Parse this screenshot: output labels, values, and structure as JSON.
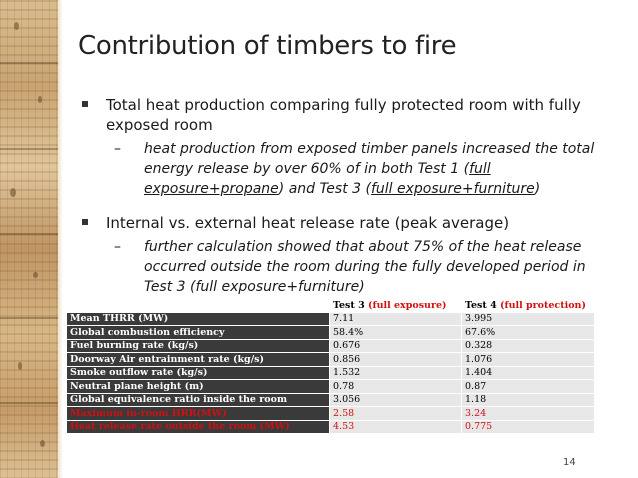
{
  "slide": {
    "title": "Contribution of timbers to fire",
    "page_number": "14"
  },
  "bullets": [
    {
      "text": "Total heat production comparing fully protected room with fully exposed room",
      "sub": {
        "part1": "heat production from exposed timber panels increased the total energy release by over 60% of in both Test 1 (",
        "u1": "full exposure+propane",
        "part2": ") and Test 3 (",
        "u2": "full exposure+furniture",
        "part3": ")"
      }
    },
    {
      "text": "Internal vs. external heat release rate (peak average)",
      "sub": {
        "text": "further calculation showed that about 75% of the heat release occurred outside the room during the fully developed period in Test 3 (full exposure+furniture)"
      }
    }
  ],
  "table": {
    "headers": [
      {
        "main": "Test 3",
        "note": "(full exposure)"
      },
      {
        "main": "Test 4",
        "note": "(full protection)"
      }
    ],
    "rows": [
      {
        "label": "Mean THRR (MW)",
        "t3": "7.11",
        "t4": "3.995",
        "highlight": false
      },
      {
        "label": "Global combustion efficiency",
        "t3": "58.4%",
        "t4": "67.6%",
        "highlight": false
      },
      {
        "label": "Fuel burning rate (kg/s)",
        "t3": "0.676",
        "t4": "0.328",
        "highlight": false
      },
      {
        "label": "Doorway Air entrainment rate  (kg/s)",
        "t3": "0.856",
        "t4": "1.076",
        "highlight": false
      },
      {
        "label": "Smoke outflow rate (kg/s)",
        "t3": "1.532",
        "t4": "1.404",
        "highlight": false
      },
      {
        "label": "Neutral plane height (m)",
        "t3": "0.78",
        "t4": "0.87",
        "highlight": false
      },
      {
        "label": "Global equivalence ratio inside the room",
        "t3": "3.056",
        "t4": "1.18",
        "highlight": false
      },
      {
        "label": "Maximum in-room HRR(MW)",
        "t3": "2.58",
        "t4": "3.24",
        "highlight": true
      },
      {
        "label": "Heat release rate outside the room (MW)",
        "t3": "4.53",
        "t4": "0.775",
        "highlight": true
      }
    ]
  },
  "colors": {
    "label_cell_bg": "#3a3a3a",
    "value_cell_bg": "#e7e7e7",
    "highlight_text": "#d01010"
  }
}
